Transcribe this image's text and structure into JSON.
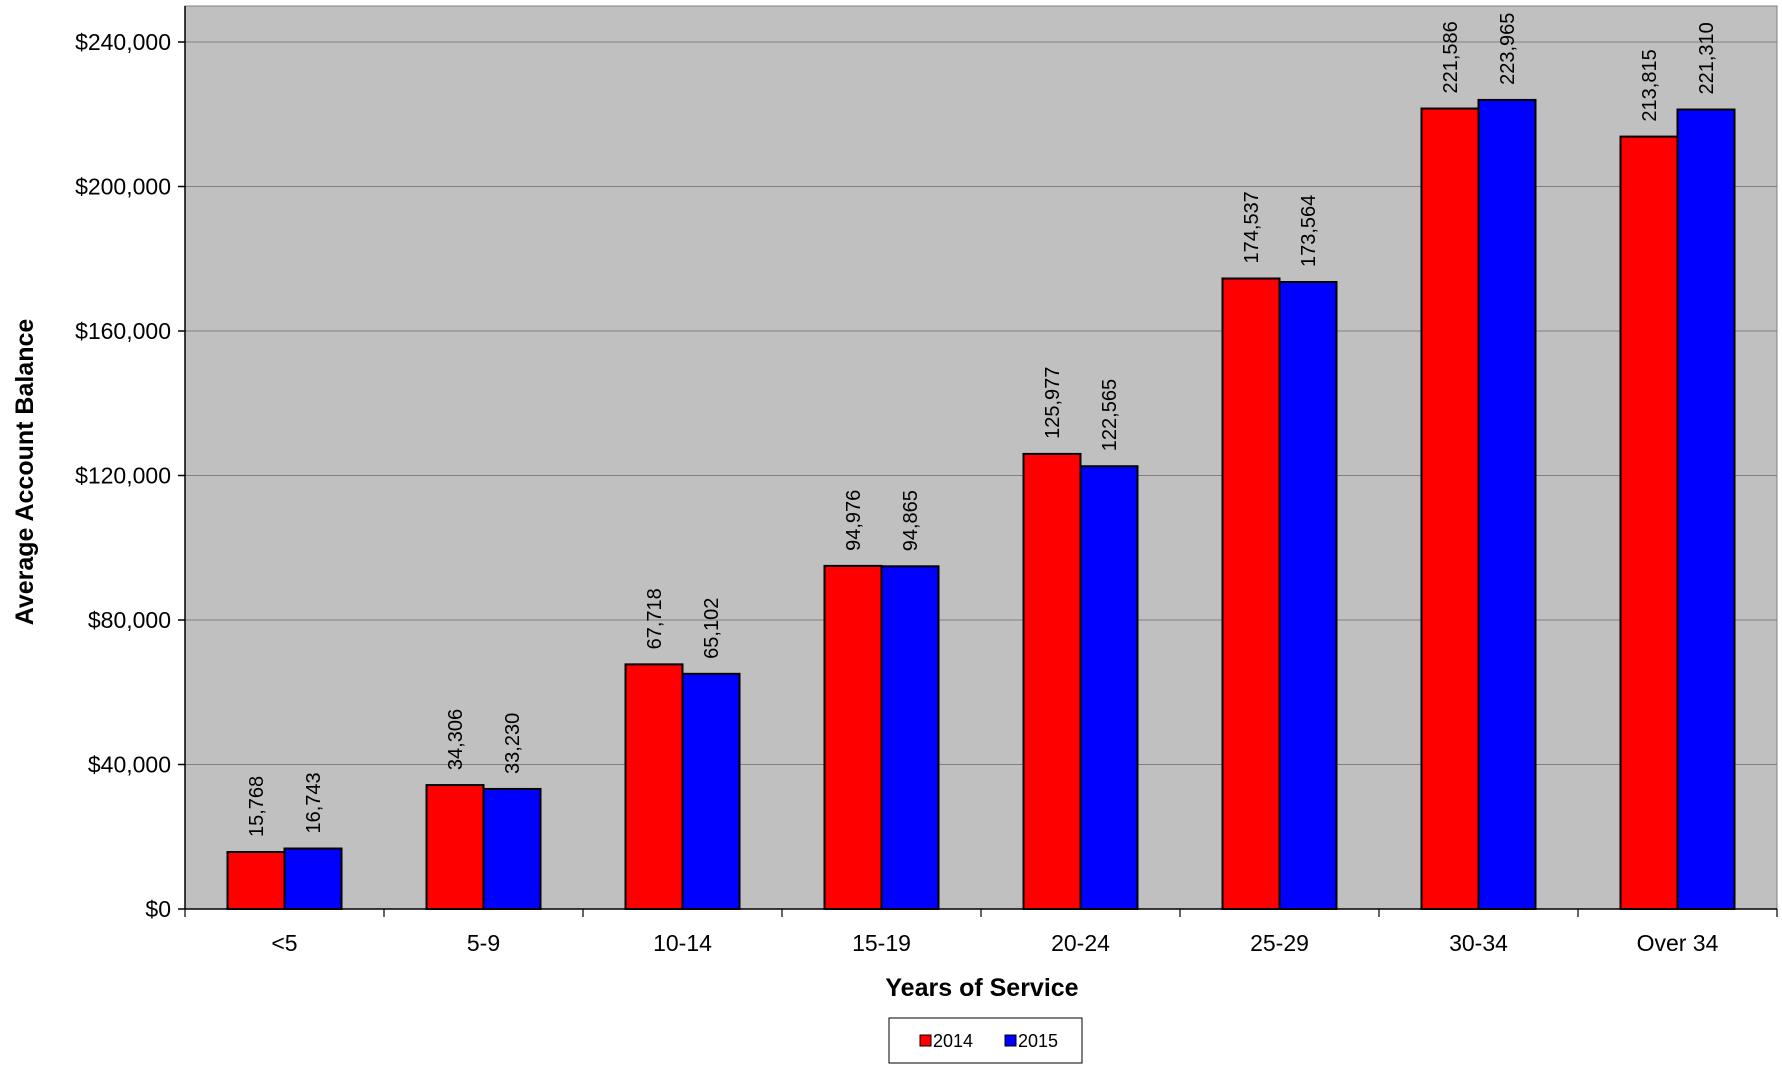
{
  "chart_data": {
    "type": "bar",
    "title": "",
    "xlabel": "Years of Service",
    "ylabel": "Average Account Balance",
    "categories": [
      "<5",
      "5-9",
      "10-14",
      "15-19",
      "20-24",
      "25-29",
      "30-34",
      "Over 34"
    ],
    "series": [
      {
        "name": "2014",
        "color": "#ff0000",
        "values": [
          15768,
          34306,
          67718,
          94976,
          125977,
          174537,
          221586,
          213815
        ],
        "labels": [
          "15,768",
          "34,306",
          "67,718",
          "94,976",
          "125,977",
          "174,537",
          "221,586",
          "213,815"
        ]
      },
      {
        "name": "2015",
        "color": "#0000ff",
        "values": [
          16743,
          33230,
          65102,
          94865,
          122565,
          173564,
          223965,
          221310
        ],
        "labels": [
          "16,743",
          "33,230",
          "65,102",
          "94,865",
          "122,565",
          "173,564",
          "223,965",
          "221,310"
        ]
      }
    ],
    "ylim": [
      0,
      240000
    ],
    "yticks": [
      0,
      40000,
      80000,
      120000,
      160000,
      200000,
      240000
    ],
    "ytick_labels": [
      "$0",
      "$40,000",
      "$80,000",
      "$120,000",
      "$160,000",
      "$200,000",
      "$240,000"
    ],
    "plot_background": "#c0c0c0",
    "grid": true,
    "legend_position": "bottom"
  }
}
